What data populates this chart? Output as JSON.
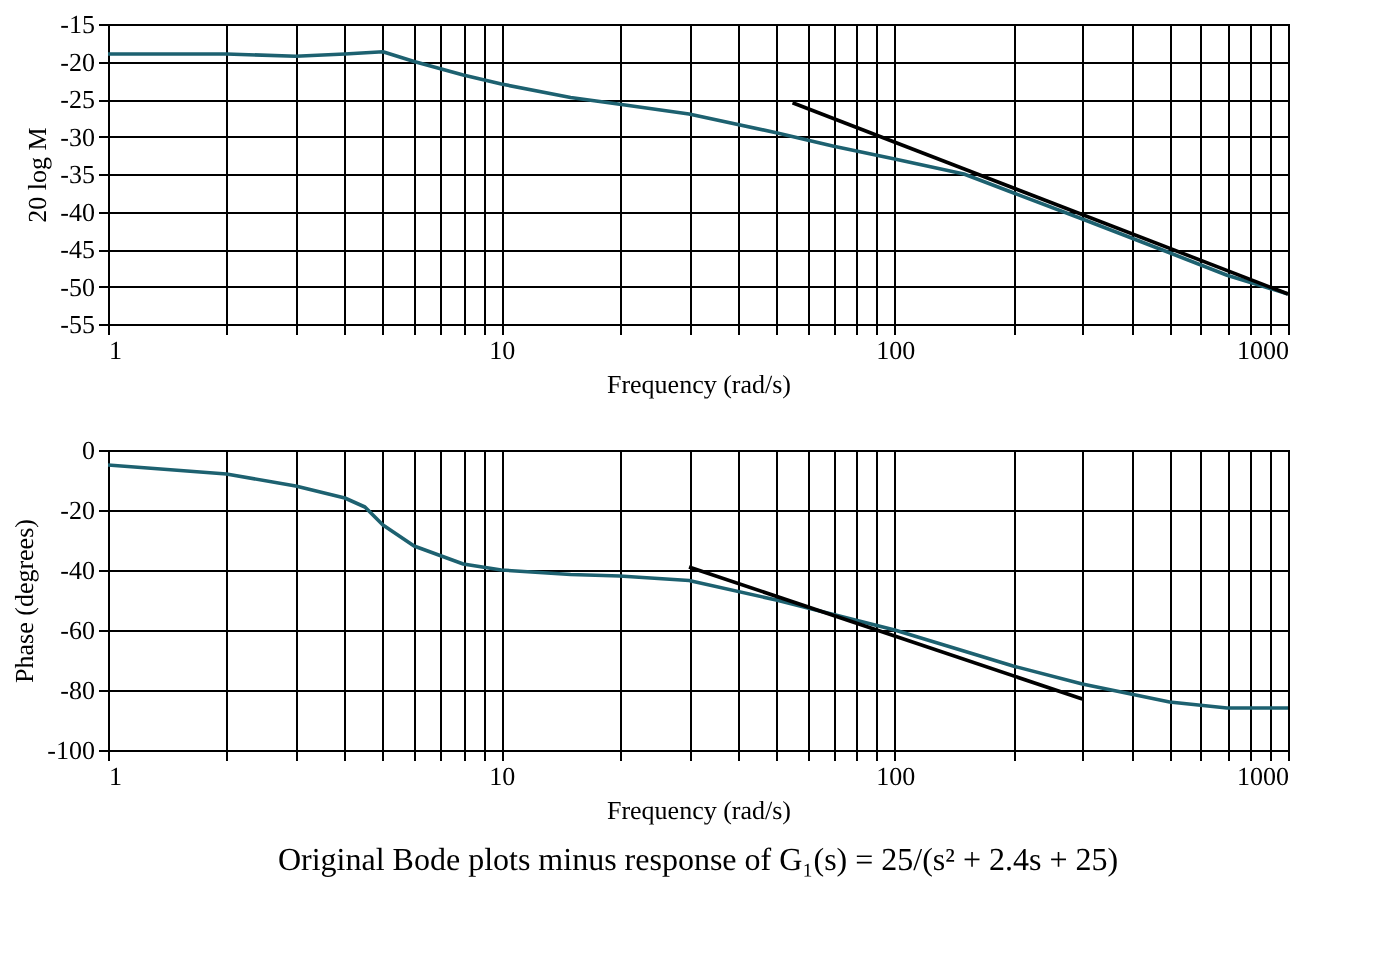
{
  "chart_data": [
    {
      "type": "line",
      "xlabel": "Frequency (rad/s)",
      "ylabel": "20 log M",
      "log": "x",
      "grid": true,
      "marker": "none",
      "line_style": "solid",
      "xlim": [
        1,
        1000
      ],
      "ylim": [
        -55,
        -15
      ],
      "xticks": [
        1,
        {
          "value": 2,
          "label": null
        },
        {
          "value": 3,
          "label": null
        },
        {
          "value": 4,
          "label": null
        },
        {
          "value": 5,
          "label": null
        },
        {
          "value": 6,
          "label": null
        },
        {
          "value": 7,
          "label": null
        },
        {
          "value": 8,
          "label": null
        },
        {
          "value": 9,
          "label": null
        },
        10,
        {
          "value": 20,
          "label": null
        },
        {
          "value": 30,
          "label": null
        },
        {
          "value": 40,
          "label": null
        },
        {
          "value": 50,
          "label": null
        },
        {
          "value": 60,
          "label": null
        },
        {
          "value": 70,
          "label": null
        },
        {
          "value": 80,
          "label": null
        },
        {
          "value": 90,
          "label": null
        },
        100,
        {
          "value": 200,
          "label": null
        },
        {
          "value": 300,
          "label": null
        },
        {
          "value": 400,
          "label": null
        },
        {
          "value": 500,
          "label": null
        },
        {
          "value": 600,
          "label": null
        },
        {
          "value": 700,
          "label": null
        },
        {
          "value": 800,
          "label": null
        },
        {
          "value": 900,
          "label": null
        },
        1000
      ],
      "yticks": [
        -55,
        -50,
        -45,
        -40,
        -35,
        -30,
        -25,
        -20,
        -15
      ],
      "series": [
        {
          "type": "line",
          "color": "#1d6170",
          "x": [
            1,
            2,
            3,
            4,
            5,
            6,
            8,
            10,
            15,
            20,
            30,
            50,
            70,
            100,
            150,
            200,
            300,
            500,
            700,
            1000
          ],
          "values": [
            -19,
            -19,
            -19.3,
            -19,
            -18.7,
            -20,
            -21.8,
            -23,
            -24.8,
            -25.7,
            -27,
            -29.5,
            -31.3,
            -33,
            -35,
            -37.5,
            -41,
            -45.5,
            -48.5,
            -51
          ]
        },
        {
          "type": "line",
          "color": "#000000",
          "x": [
            55,
            1000
          ],
          "values": [
            -25.5,
            -51
          ]
        }
      ]
    },
    {
      "type": "line",
      "xlabel": "Frequency (rad/s)",
      "ylabel": "Phase (degrees)",
      "log": "x",
      "grid": true,
      "marker": "none",
      "line_style": "solid",
      "annotations": [
        "Original Bode plots minus response of G₁(s) = 25/(s² + 2.4s + 25)"
      ],
      "xlim": [
        1,
        1000
      ],
      "ylim": [
        -100,
        0
      ],
      "xticks": [
        1,
        {
          "value": 2,
          "label": null
        },
        {
          "value": 3,
          "label": null
        },
        {
          "value": 4,
          "label": null
        },
        {
          "value": 5,
          "label": null
        },
        {
          "value": 6,
          "label": null
        },
        {
          "value": 7,
          "label": null
        },
        {
          "value": 8,
          "label": null
        },
        {
          "value": 9,
          "label": null
        },
        10,
        {
          "value": 20,
          "label": null
        },
        {
          "value": 30,
          "label": null
        },
        {
          "value": 40,
          "label": null
        },
        {
          "value": 50,
          "label": null
        },
        {
          "value": 60,
          "label": null
        },
        {
          "value": 70,
          "label": null
        },
        {
          "value": 80,
          "label": null
        },
        {
          "value": 90,
          "label": null
        },
        100,
        {
          "value": 200,
          "label": null
        },
        {
          "value": 300,
          "label": null
        },
        {
          "value": 400,
          "label": null
        },
        {
          "value": 500,
          "label": null
        },
        {
          "value": 600,
          "label": null
        },
        {
          "value": 700,
          "label": null
        },
        {
          "value": 800,
          "label": null
        },
        {
          "value": 900,
          "label": null
        },
        1000
      ],
      "yticks": [
        -100,
        -80,
        -60,
        -40,
        -20,
        0
      ],
      "series": [
        {
          "type": "line",
          "color": "#1d6170",
          "x": [
            1,
            2,
            3,
            4,
            4.5,
            5,
            6,
            8,
            10,
            15,
            20,
            30,
            50,
            100,
            200,
            300,
            500,
            700,
            1000
          ],
          "values": [
            -5,
            -8,
            -12,
            -16,
            -19,
            -25,
            -32,
            -38,
            -40,
            -41.5,
            -42,
            -43.5,
            -50,
            -60,
            -72,
            -78,
            -84,
            -86,
            -86
          ]
        },
        {
          "type": "line",
          "color": "#000000",
          "x": [
            30,
            300
          ],
          "values": [
            -39,
            -83
          ]
        }
      ]
    }
  ]
}
